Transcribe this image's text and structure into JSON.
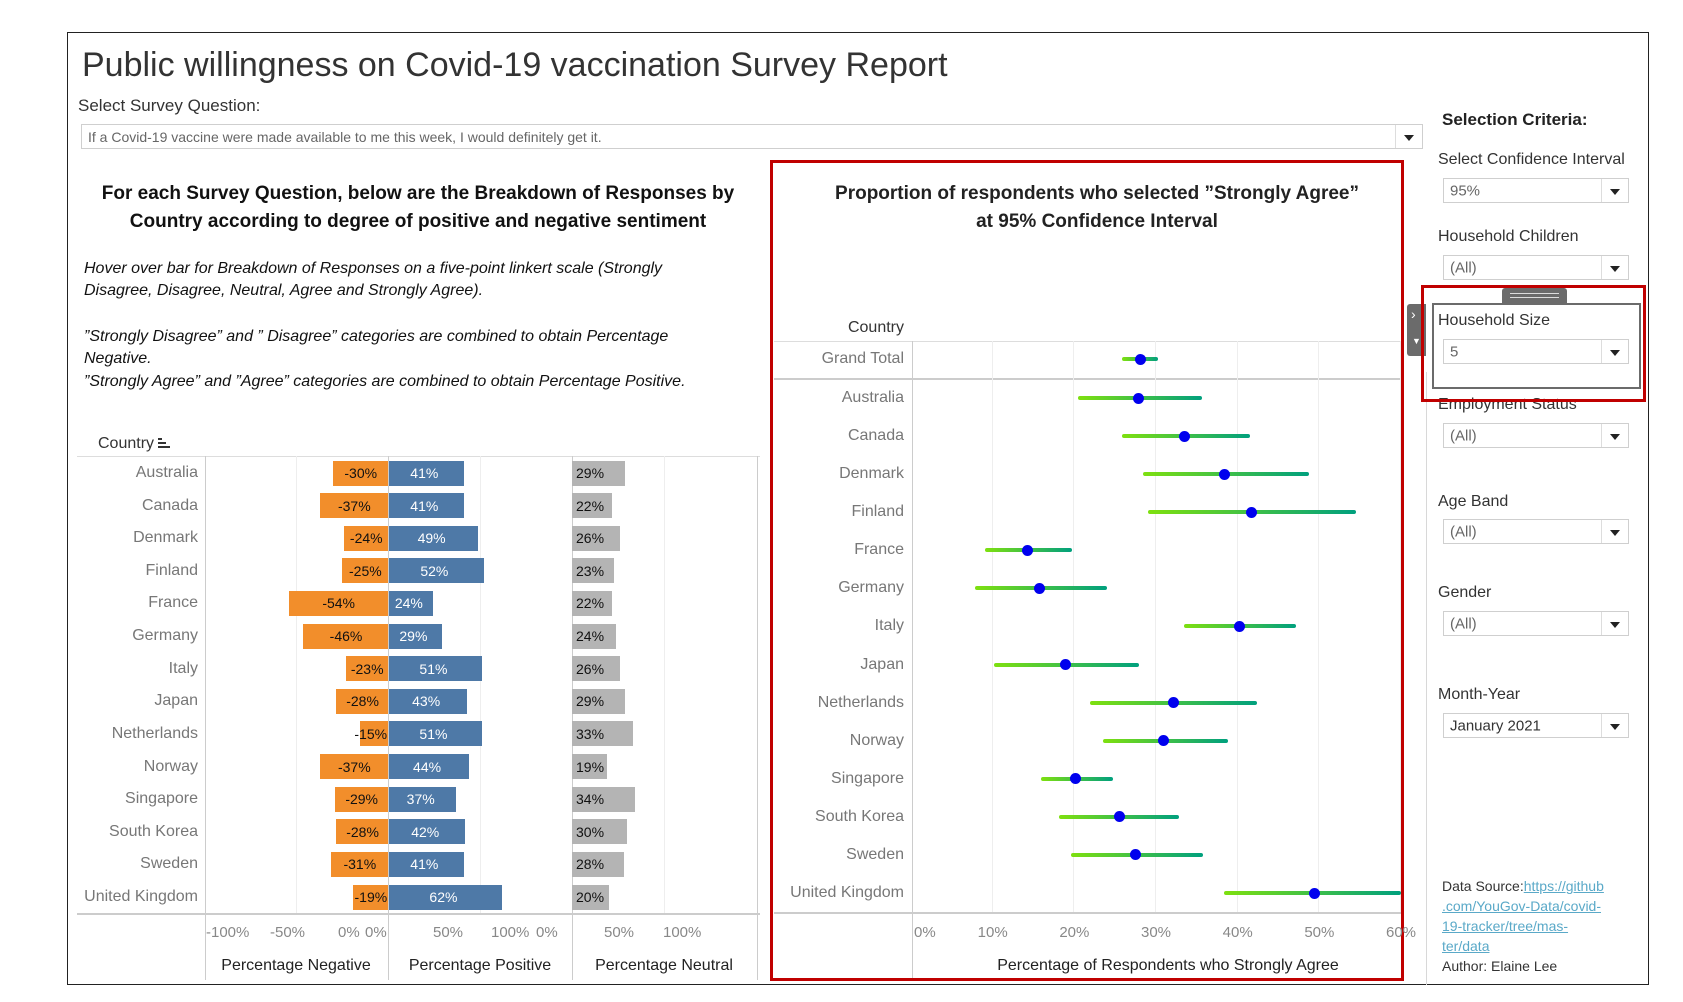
{
  "title": "Public willingness on Covid-19 vaccination Survey Report",
  "survey_question": {
    "label": "Select Survey Question:",
    "value": "If a Covid-19 vaccine were made available to me this week, I would definitely get it."
  },
  "left_panel": {
    "heading_line1": "For each Survey Question, below are the Breakdown of Responses by",
    "heading_line2": "Country according to degree of positive and negative sentiment",
    "notes": [
      "Hover over bar for Breakdown of Responses  on a five-point linkert scale (Strongly",
      "Disagree, Disagree, Neutral, Agree and Strongly Agree).",
      "”Strongly Disagree” and ” Disagree” categories are combined to obtain Percentage",
      "Negative.",
      "”Strongly Agree” and ”Agree” categories are combined to obtain Percentage Positive."
    ],
    "country_header": "Country",
    "sort_icon": "sort-descending-icon"
  },
  "right_panel": {
    "heading_line1": "Proportion of respondents who selected ”Strongly Agree”",
    "heading_line2": "at 95% Confidence Interval",
    "country_header": "Country"
  },
  "chart_data": [
    {
      "type": "bar",
      "orientation": "horizontal diverging",
      "categories": [
        "Australia",
        "Canada",
        "Denmark",
        "Finland",
        "France",
        "Germany",
        "Italy",
        "Japan",
        "Netherlands",
        "Norway",
        "Singapore",
        "South Korea",
        "Sweden",
        "United Kingdom"
      ],
      "series": [
        {
          "name": "Percentage Negative",
          "values": [
            -30,
            -37,
            -24,
            -25,
            -54,
            -46,
            -23,
            -28,
            -15,
            -37,
            -29,
            -28,
            -31,
            -19
          ],
          "color": "#f28e2b",
          "xlim": [
            -100,
            0
          ],
          "ticks": [
            "-100%",
            "-50%",
            "0%"
          ]
        },
        {
          "name": "Percentage Positive",
          "values": [
            41,
            41,
            49,
            52,
            24,
            29,
            51,
            43,
            51,
            44,
            37,
            42,
            41,
            62
          ],
          "color": "#4e79a7",
          "xlim": [
            0,
            100
          ],
          "ticks": [
            "0%",
            "50%",
            "100%"
          ]
        },
        {
          "name": "Percentage Neutral",
          "values": [
            29,
            22,
            26,
            23,
            22,
            24,
            26,
            29,
            33,
            19,
            34,
            30,
            28,
            20
          ],
          "color": "#b4b4b4",
          "xlim": [
            0,
            100
          ],
          "ticks": [
            "0%",
            "50%",
            "100%"
          ]
        }
      ],
      "unit": "%",
      "grid": true
    },
    {
      "type": "scatter",
      "subtype": "point with confidence interval",
      "categories": [
        "Grand Total",
        "Australia",
        "Canada",
        "Denmark",
        "Finland",
        "France",
        "Germany",
        "Italy",
        "Japan",
        "Netherlands",
        "Norway",
        "Singapore",
        "South Korea",
        "Sweden",
        "United Kingdom"
      ],
      "estimate": [
        28.2,
        28.0,
        33.6,
        38.5,
        41.8,
        14.4,
        15.9,
        40.3,
        19.0,
        32.3,
        31.1,
        20.3,
        25.6,
        27.6,
        49.5
      ],
      "lower": [
        26.0,
        20.6,
        25.9,
        28.5,
        29.2,
        9.2,
        7.9,
        33.5,
        10.3,
        22.1,
        23.6,
        16.1,
        18.3,
        19.7,
        38.5
      ],
      "upper": [
        30.4,
        35.7,
        41.6,
        48.9,
        54.6,
        19.8,
        24.1,
        47.3,
        28.0,
        42.5,
        38.9,
        24.8,
        33.0,
        35.9,
        60.5
      ],
      "xlabel": "Percentage of Respondents who Strongly Agree",
      "xlim": [
        0,
        60
      ],
      "ticks": [
        "0%",
        "10%",
        "20%",
        "30%",
        "40%",
        "50%",
        "60%"
      ],
      "point_color": "#0000ee",
      "interval_colors": [
        "#7ee00f",
        "#00a07e"
      ],
      "grid": true
    }
  ],
  "sidebar": {
    "title": "Selection Criteria:",
    "filters": [
      {
        "label": "Select Confidence Interval",
        "value": "95%"
      },
      {
        "label": "Household Children",
        "value": "(All)"
      },
      {
        "label": "Household Size",
        "value": "5"
      },
      {
        "label": "Employment Status",
        "value": "(All)"
      },
      {
        "label": "Age Band",
        "value": "(All)"
      },
      {
        "label": "Gender",
        "value": "(All)"
      },
      {
        "label": "Month-Year",
        "value": "January 2021"
      }
    ],
    "data_source_label": "Data Source:",
    "data_source_link": [
      "https://github",
      ".com/YouGov-Data/covid-",
      "19-tracker/tree/mas-",
      "ter/data"
    ],
    "author": "Author: Elaine Lee"
  },
  "colors": {
    "highlight_box": "#c00000",
    "link": "#5aa9c8"
  }
}
